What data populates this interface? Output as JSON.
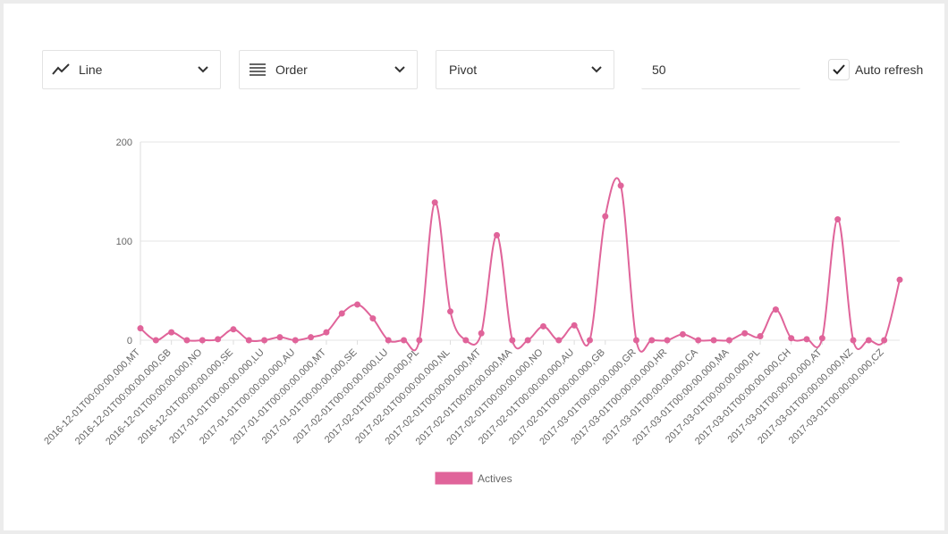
{
  "controls": {
    "chart_type": "Line",
    "order": "Order",
    "pivot": "Pivot",
    "limit": 50,
    "auto_refresh": "Auto refresh"
  },
  "chart_data": {
    "type": "line",
    "categories": [
      "2016-12-01T00:00:00.000,MT",
      null,
      "2016-12-01T00:00:00.000,GB",
      null,
      "2016-12-01T00:00:00.000,NO",
      null,
      "2016-12-01T00:00:00.000,SE",
      null,
      "2017-01-01T00:00:00.000,LU",
      null,
      "2017-01-01T00:00:00.000,AU",
      null,
      "2017-01-01T00:00:00.000,MT",
      null,
      "2017-01-01T00:00:00.000,SE",
      null,
      "2017-02-01T00:00:00.000,LU",
      null,
      "2017-02-01T00:00:00.000,PL",
      null,
      "2017-02-01T00:00:00.000,NL",
      null,
      "2017-02-01T00:00:00.000,MT",
      null,
      "2017-02-01T00:00:00.000,MA",
      null,
      "2017-02-01T00:00:00.000,NO",
      null,
      "2017-02-01T00:00:00.000,AU",
      null,
      "2017-02-01T00:00:00.000,GB",
      null,
      "2017-03-01T00:00:00.000,GR",
      null,
      "2017-03-01T00:00:00.000,HR",
      null,
      "2017-03-01T00:00:00.000,CA",
      null,
      "2017-03-01T00:00:00.000,MA",
      null,
      "2017-03-01T00:00:00.000,PL",
      null,
      "2017-03-01T00:00:00.000,CH",
      null,
      "2017-03-01T00:00:00.000,AT",
      null,
      "2017-03-01T00:00:00.000,NZ",
      null,
      "2017-03-01T00:00:00.000,CZ",
      null
    ],
    "series": [
      {
        "name": "Actives",
        "color": "#e0649a",
        "values": [
          12,
          0,
          8,
          0,
          0,
          1,
          11,
          0,
          0,
          3,
          0,
          3,
          8,
          27,
          36,
          22,
          0,
          0,
          0,
          139,
          29,
          0,
          7,
          106,
          0,
          0,
          14,
          0,
          15,
          0,
          125,
          156,
          0,
          0,
          0,
          6,
          0,
          0,
          0,
          7,
          4,
          31,
          2,
          1,
          2,
          122,
          0,
          0,
          0,
          61
        ]
      }
    ],
    "ylim": [
      0,
      200
    ],
    "yticks": [
      0,
      100,
      200
    ],
    "grid": true
  }
}
